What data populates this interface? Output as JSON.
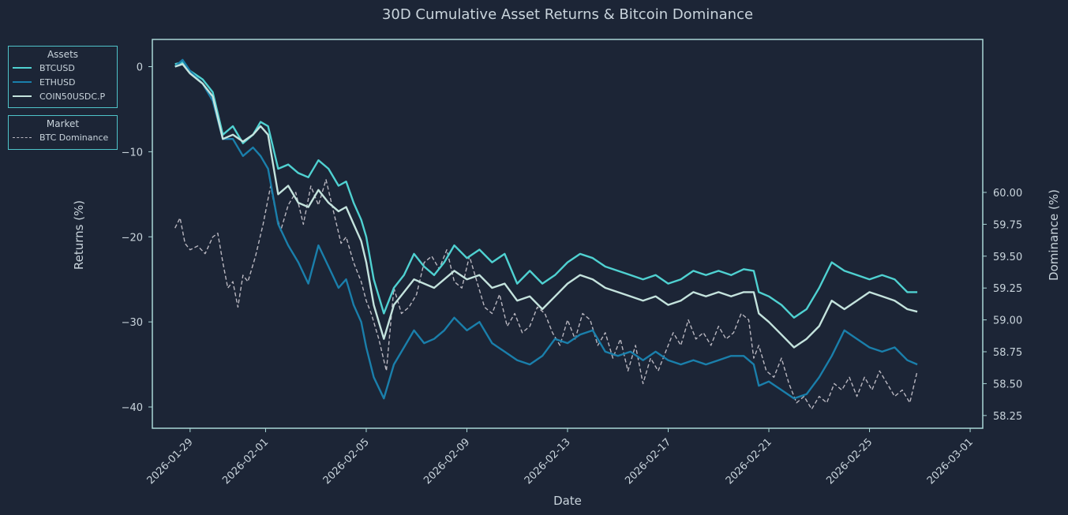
{
  "chart_data": {
    "type": "line",
    "title": "30D Cumulative Asset Returns & Bitcoin Dominance",
    "xlabel": "Date",
    "ylabel": "Returns (%)",
    "y2label": "Dominance (%)",
    "ylim": [
      -42.5,
      3.2
    ],
    "y2lim": [
      58.15,
      61.2
    ],
    "yticks": [
      0,
      -10,
      -20,
      -30,
      -40
    ],
    "yticklabels": [
      "0",
      "−10",
      "−20",
      "−30",
      "−40"
    ],
    "y2ticks": [
      60.0,
      59.75,
      59.5,
      59.25,
      59.0,
      58.75,
      58.5,
      58.25
    ],
    "y2ticklabels": [
      "60.00",
      "59.75",
      "59.50",
      "59.25",
      "59.00",
      "58.75",
      "58.50",
      "58.25"
    ],
    "xlim": [
      -1.5,
      31.5
    ],
    "xticks": [
      0,
      3,
      7,
      11,
      15,
      19,
      23,
      27,
      31
    ],
    "xticklabels": [
      "2026-01-29",
      "2026-02-01",
      "2026-02-05",
      "2026-02-09",
      "2026-02-13",
      "2026-02-17",
      "2026-02-21",
      "2026-02-25",
      "2026-03-01"
    ],
    "x_unit": "days since 2026-01-29",
    "legends": [
      {
        "title": "Assets",
        "entries": [
          "BTCUSD",
          "ETHUSD",
          "COIN50USDC.P"
        ]
      },
      {
        "title": "Market",
        "entries": [
          "BTC Dominance"
        ]
      }
    ],
    "series": [
      {
        "name": "BTCUSD",
        "axis": "left",
        "color": "#4fd1d1",
        "x": [
          -0.6,
          -0.3,
          0.0,
          0.5,
          0.9,
          1.3,
          1.7,
          2.1,
          2.5,
          2.8,
          3.1,
          3.5,
          3.9,
          4.3,
          4.7,
          5.1,
          5.5,
          5.9,
          6.2,
          6.5,
          6.8,
          7.0,
          7.3,
          7.7,
          8.1,
          8.5,
          8.9,
          9.3,
          9.7,
          10.1,
          10.5,
          11.0,
          11.5,
          12.0,
          12.5,
          13.0,
          13.5,
          14.0,
          14.5,
          15.0,
          15.5,
          16.0,
          16.5,
          17.0,
          17.5,
          18.0,
          18.5,
          19.0,
          19.5,
          20.0,
          20.5,
          21.0,
          21.5,
          22.0,
          22.4,
          22.6,
          23.0,
          23.5,
          24.0,
          24.5,
          25.0,
          25.5,
          26.0,
          26.5,
          27.0,
          27.5,
          28.0,
          28.5,
          28.9
        ],
        "values": [
          0.3,
          0.5,
          -0.5,
          -1.5,
          -3.0,
          -8.0,
          -7.0,
          -9.0,
          -8.0,
          -6.5,
          -7.0,
          -12.0,
          -11.5,
          -12.5,
          -13.0,
          -11.0,
          -12.0,
          -14.0,
          -13.5,
          -16.0,
          -18.0,
          -20.0,
          -25.0,
          -29.0,
          -26.0,
          -24.5,
          -22.0,
          -23.5,
          -24.5,
          -23.0,
          -21.0,
          -22.5,
          -21.5,
          -23.0,
          -22.0,
          -25.5,
          -24.0,
          -25.5,
          -24.5,
          -23.0,
          -22.0,
          -22.5,
          -23.5,
          -24.0,
          -24.5,
          -25.0,
          -24.5,
          -25.5,
          -25.0,
          -24.0,
          -24.5,
          -24.0,
          -24.5,
          -23.8,
          -24.0,
          -26.5,
          -27.0,
          -28.0,
          -29.5,
          -28.5,
          -26.0,
          -23.0,
          -24.0,
          -24.5,
          -25.0,
          -24.5,
          -25.0,
          -26.5,
          -26.5
        ]
      },
      {
        "name": "ETHUSD",
        "axis": "left",
        "color": "#1a7fab",
        "x": [
          -0.6,
          -0.3,
          0.0,
          0.5,
          0.9,
          1.3,
          1.7,
          2.1,
          2.5,
          2.8,
          3.1,
          3.5,
          3.9,
          4.3,
          4.7,
          5.1,
          5.5,
          5.9,
          6.2,
          6.5,
          6.8,
          7.0,
          7.3,
          7.7,
          8.1,
          8.5,
          8.9,
          9.3,
          9.7,
          10.1,
          10.5,
          11.0,
          11.5,
          12.0,
          12.5,
          13.0,
          13.5,
          14.0,
          14.5,
          15.0,
          15.5,
          16.0,
          16.5,
          17.0,
          17.5,
          18.0,
          18.5,
          19.0,
          19.5,
          20.0,
          20.5,
          21.0,
          21.5,
          22.0,
          22.4,
          22.6,
          23.0,
          23.5,
          24.0,
          24.5,
          25.0,
          25.5,
          26.0,
          26.5,
          27.0,
          27.5,
          28.0,
          28.5,
          28.9
        ],
        "values": [
          0.0,
          0.8,
          -0.5,
          -2.0,
          -4.0,
          -8.5,
          -8.5,
          -10.5,
          -9.5,
          -10.5,
          -12.0,
          -18.5,
          -21.0,
          -23.0,
          -25.5,
          -21.0,
          -23.5,
          -26.0,
          -25.0,
          -28.0,
          -30.0,
          -33.0,
          -36.5,
          -39.0,
          -35.0,
          -33.0,
          -31.0,
          -32.5,
          -32.0,
          -31.0,
          -29.5,
          -31.0,
          -30.0,
          -32.5,
          -33.5,
          -34.5,
          -35.0,
          -34.0,
          -32.0,
          -32.5,
          -31.5,
          -31.0,
          -33.5,
          -34.0,
          -33.5,
          -34.5,
          -33.5,
          -34.5,
          -35.0,
          -34.5,
          -35.0,
          -34.5,
          -34.0,
          -34.0,
          -35.0,
          -37.5,
          -37.0,
          -38.0,
          -39.0,
          -38.5,
          -36.5,
          -34.0,
          -31.0,
          -32.0,
          -33.0,
          -33.5,
          -33.0,
          -34.5,
          -35.0
        ]
      },
      {
        "name": "COIN50USDC.P",
        "axis": "left",
        "color": "#c4e3dd",
        "x": [
          -0.6,
          -0.3,
          0.0,
          0.5,
          0.9,
          1.3,
          1.7,
          2.1,
          2.5,
          2.8,
          3.1,
          3.5,
          3.9,
          4.3,
          4.7,
          5.1,
          5.5,
          5.9,
          6.2,
          6.5,
          6.8,
          7.0,
          7.3,
          7.7,
          8.1,
          8.5,
          8.9,
          9.3,
          9.7,
          10.1,
          10.5,
          11.0,
          11.5,
          12.0,
          12.5,
          13.0,
          13.5,
          14.0,
          14.5,
          15.0,
          15.5,
          16.0,
          16.5,
          17.0,
          17.5,
          18.0,
          18.5,
          19.0,
          19.5,
          20.0,
          20.5,
          21.0,
          21.5,
          22.0,
          22.4,
          22.6,
          23.0,
          23.5,
          24.0,
          24.5,
          25.0,
          25.5,
          26.0,
          26.5,
          27.0,
          27.5,
          28.0,
          28.5,
          28.9
        ],
        "values": [
          0.0,
          0.3,
          -0.8,
          -2.0,
          -3.5,
          -8.5,
          -8.0,
          -8.8,
          -8.0,
          -7.0,
          -8.0,
          -15.0,
          -14.0,
          -16.0,
          -16.5,
          -14.5,
          -16.0,
          -17.0,
          -16.5,
          -18.5,
          -20.5,
          -23.0,
          -28.0,
          -32.0,
          -28.0,
          -26.5,
          -25.0,
          -25.5,
          -26.0,
          -25.0,
          -24.0,
          -25.0,
          -24.5,
          -26.0,
          -25.5,
          -27.5,
          -27.0,
          -28.5,
          -27.0,
          -25.5,
          -24.5,
          -25.0,
          -26.0,
          -26.5,
          -27.0,
          -27.5,
          -27.0,
          -28.0,
          -27.5,
          -26.5,
          -27.0,
          -26.5,
          -27.0,
          -26.5,
          -26.5,
          -29.0,
          -30.0,
          -31.5,
          -33.0,
          -32.0,
          -30.5,
          -27.5,
          -28.5,
          -27.5,
          -26.5,
          -27.0,
          -27.5,
          -28.5,
          -28.8
        ]
      },
      {
        "name": "BTC Dominance",
        "axis": "right",
        "color": "#b9b7c0",
        "dashed": true,
        "x": [
          -0.6,
          -0.4,
          -0.2,
          0.0,
          0.3,
          0.6,
          0.9,
          1.1,
          1.3,
          1.5,
          1.7,
          1.9,
          2.1,
          2.3,
          2.6,
          2.9,
          3.2,
          3.4,
          3.6,
          3.9,
          4.2,
          4.5,
          4.8,
          5.1,
          5.4,
          5.7,
          6.0,
          6.2,
          6.5,
          6.8,
          7.0,
          7.2,
          7.5,
          7.8,
          8.1,
          8.4,
          8.7,
          9.0,
          9.3,
          9.6,
          9.9,
          10.2,
          10.5,
          10.8,
          11.1,
          11.4,
          11.7,
          12.0,
          12.3,
          12.6,
          12.9,
          13.2,
          13.5,
          13.8,
          14.1,
          14.4,
          14.7,
          15.0,
          15.3,
          15.6,
          15.9,
          16.2,
          16.5,
          16.8,
          17.1,
          17.4,
          17.7,
          18.0,
          18.3,
          18.6,
          18.9,
          19.2,
          19.5,
          19.8,
          20.1,
          20.4,
          20.7,
          21.0,
          21.3,
          21.6,
          21.9,
          22.2,
          22.4,
          22.6,
          22.9,
          23.2,
          23.5,
          23.8,
          24.1,
          24.4,
          24.7,
          25.0,
          25.3,
          25.6,
          25.9,
          26.2,
          26.5,
          26.8,
          27.1,
          27.4,
          27.7,
          28.0,
          28.3,
          28.6,
          28.9
        ],
        "values": [
          59.72,
          59.8,
          59.6,
          59.55,
          59.58,
          59.52,
          59.65,
          59.68,
          59.45,
          59.25,
          59.3,
          59.1,
          59.35,
          59.3,
          59.5,
          59.75,
          60.05,
          59.85,
          59.7,
          59.9,
          60.0,
          59.75,
          60.05,
          59.9,
          60.1,
          59.85,
          59.6,
          59.65,
          59.45,
          59.3,
          59.15,
          59.05,
          58.85,
          58.6,
          59.25,
          59.05,
          59.1,
          59.2,
          59.45,
          59.5,
          59.4,
          59.55,
          59.3,
          59.25,
          59.5,
          59.3,
          59.1,
          59.05,
          59.2,
          58.95,
          59.05,
          58.9,
          58.95,
          59.1,
          59.05,
          58.9,
          58.8,
          59.0,
          58.85,
          59.05,
          59.0,
          58.8,
          58.9,
          58.7,
          58.85,
          58.6,
          58.8,
          58.5,
          58.7,
          58.6,
          58.75,
          58.9,
          58.8,
          59.0,
          58.85,
          58.9,
          58.8,
          58.95,
          58.85,
          58.9,
          59.05,
          59.0,
          58.7,
          58.8,
          58.6,
          58.55,
          58.7,
          58.5,
          58.35,
          58.4,
          58.3,
          58.4,
          58.35,
          58.5,
          58.45,
          58.55,
          58.4,
          58.55,
          58.45,
          58.6,
          58.5,
          58.4,
          58.45,
          58.35,
          58.6
        ]
      }
    ]
  }
}
